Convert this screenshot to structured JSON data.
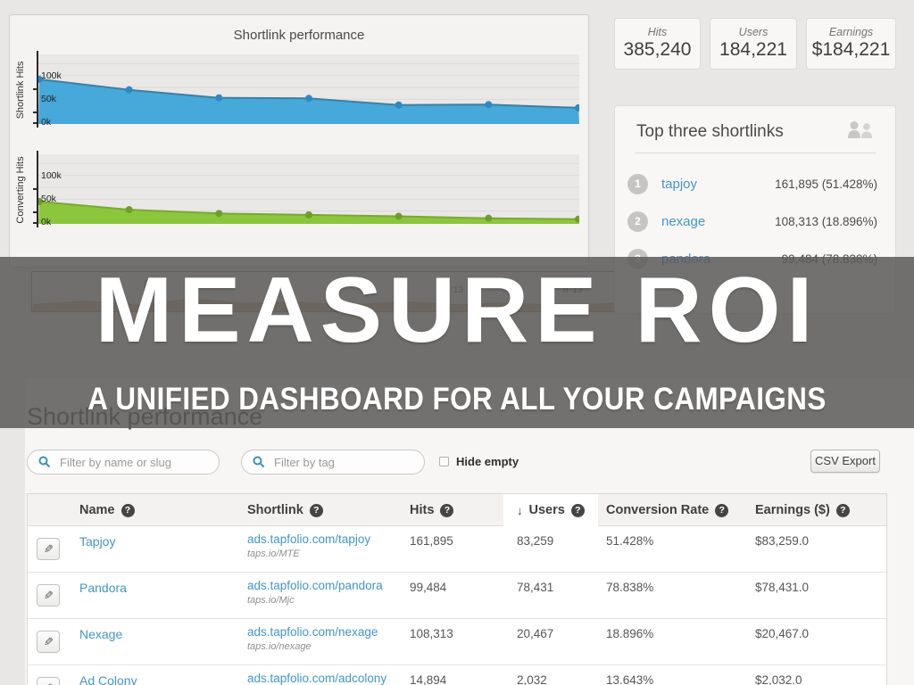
{
  "slide": {
    "title": "MEASURE ROI",
    "subtitle": "A UNIFIED DASHBOARD FOR ALL YOUR CAMPAIGNS"
  },
  "stats": [
    {
      "label": "Hits",
      "value": "385,240"
    },
    {
      "label": "Users",
      "value": "184,221"
    },
    {
      "label": "Earnings",
      "value": "$184,221"
    }
  ],
  "top_shortlinks": {
    "title": "Top three shortlinks",
    "items": [
      {
        "rank": "1",
        "name": "tapjoy",
        "value": "161,895 (51.428%)"
      },
      {
        "rank": "2",
        "name": "nexage",
        "value": "108,313 (18.896%)"
      },
      {
        "rank": "3",
        "name": "pandora",
        "value": "99,484 (78.838%)"
      }
    ]
  },
  "chart_data": [
    {
      "type": "area",
      "title": "Shortlink performance",
      "ylabel": "Shortlink Hits",
      "yticks": [
        "100k",
        "50k",
        "0k"
      ],
      "ylim": [
        0,
        135
      ],
      "gridlines": [
        25,
        50,
        75,
        100,
        125
      ],
      "values": [
        92,
        70,
        53,
        52,
        38,
        39,
        32
      ],
      "fill": "#47a8da",
      "stroke": "#3d7fa3",
      "dot": "#2f88c2",
      "dots": true
    },
    {
      "type": "area",
      "ylabel": "Converting Hits",
      "yticks": [
        "100k",
        "50k",
        "0k"
      ],
      "ylim": [
        0,
        135
      ],
      "gridlines": [
        25,
        50,
        75,
        100,
        125
      ],
      "values": [
        45,
        28,
        20,
        17,
        14,
        10,
        8
      ],
      "fill": "#8cc63d",
      "stroke": "#7aa832",
      "dot": "#6f9e2c",
      "dots": true
    },
    {
      "type": "area",
      "name": "timeline-brush",
      "ylim": [
        0,
        60
      ],
      "values": [
        10,
        16,
        9,
        20,
        12,
        14,
        9,
        15,
        10,
        13,
        8,
        12,
        7,
        11,
        9,
        13,
        8
      ],
      "fill": "#d5ab80",
      "stroke": "#c49a6f",
      "dots": false,
      "labels": [
        "'13",
        "n '13"
      ]
    }
  ],
  "section": {
    "heading": "Shortlink performance",
    "filter_name_placeholder": "Filter by name or slug",
    "filter_tag_placeholder": "Filter by tag",
    "hide_empty_label": "Hide empty",
    "csv_export_label": "CSV Export"
  },
  "table": {
    "columns": [
      "Name",
      "Shortlink",
      "Hits",
      "Users",
      "Conversion Rate",
      "Earnings ($)"
    ],
    "sorted_column": "Users",
    "rows": [
      {
        "name": "Tapjoy",
        "shortlink": "ads.tapfolio.com/tapjoy",
        "slug": "taps.io/MTE",
        "hits": "161,895",
        "users": "83,259",
        "conversion": "51.428%",
        "earnings": "$83,259.0"
      },
      {
        "name": "Pandora",
        "shortlink": "ads.tapfolio.com/pandora",
        "slug": "taps.io/Mjc",
        "hits": "99,484",
        "users": "78,431",
        "conversion": "78.838%",
        "earnings": "$78,431.0"
      },
      {
        "name": "Nexage",
        "shortlink": "ads.tapfolio.com/nexage",
        "slug": "taps.io/nexage",
        "hits": "108,313",
        "users": "20,467",
        "conversion": "18.896%",
        "earnings": "$20,467.0"
      },
      {
        "name": "Ad Colony",
        "shortlink": "ads.tapfolio.com/adcolony",
        "slug": "",
        "hits": "14,894",
        "users": "2,032",
        "conversion": "13.643%",
        "earnings": "$2,032.0"
      }
    ]
  },
  "icons": {
    "help_glyph": "?",
    "sort_desc_glyph": "↓",
    "edit_glyph": "✎"
  },
  "colors": {
    "link_blue": "#4295c9",
    "chart_blue": "#47a8da",
    "chart_green": "#8cc63d",
    "brush_tan": "#d5ab80",
    "overlay_gray": "#5a5958",
    "page_bg": "#e8e7e5"
  }
}
